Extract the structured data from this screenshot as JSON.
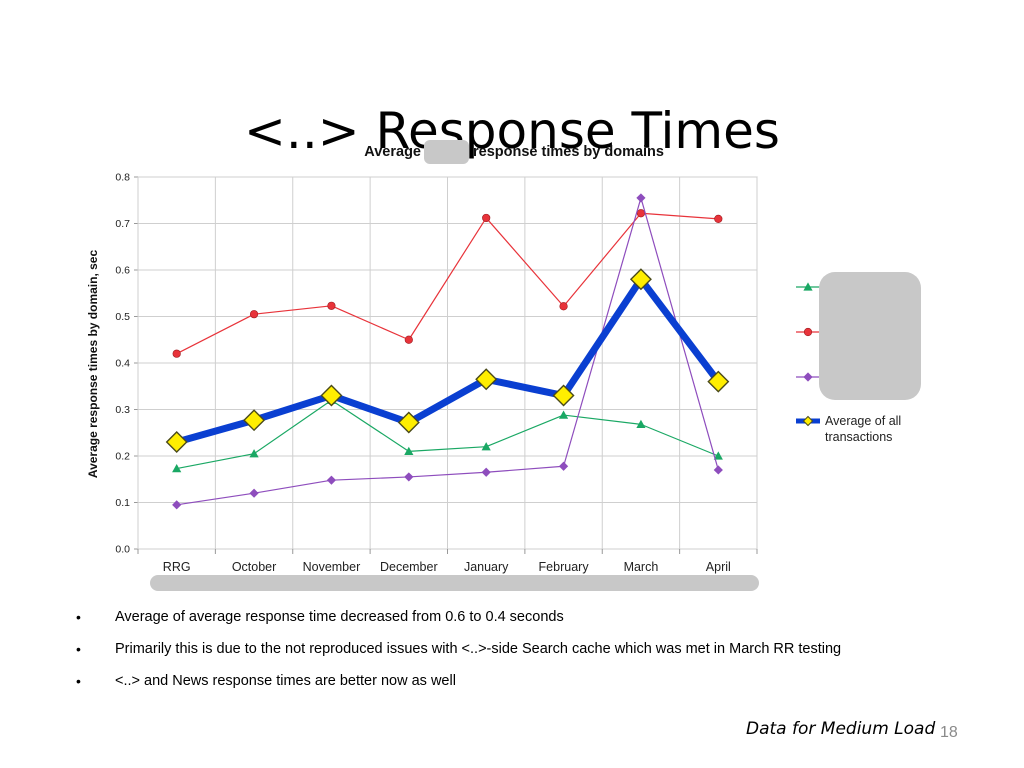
{
  "slide": {
    "title": "<..> Response Times",
    "bullets": [
      "Average of average response time decreased from 0.6 to 0.4 seconds",
      "Primarily this is due to the not reproduced issues with <..>-side Search cache which was met  in March RR testing",
      "<..> and News response times are better now as well"
    ],
    "footer_note": "Data for Medium Load",
    "slide_number": "18"
  },
  "chart_data": {
    "type": "line",
    "title_left": "Average",
    "title_right": "response times by domains",
    "xlabel": "",
    "ylabel": "Average response  times by domain, sec",
    "ylim": [
      0,
      0.8
    ],
    "yticks": [
      "0.0",
      "0.1",
      "0.2",
      "0.3",
      "0.4",
      "0.5",
      "0.6",
      "0.7",
      "0.8"
    ],
    "categories": [
      "RRG",
      "October",
      "November",
      "December",
      "January",
      "February",
      "March",
      "April"
    ],
    "grid": true,
    "legend_position": "right",
    "series": [
      {
        "name": "",
        "color": "#e8333a",
        "marker": "circle",
        "values": [
          0.42,
          0.505,
          0.523,
          0.45,
          0.712,
          0.522,
          0.722,
          0.71
        ]
      },
      {
        "name": "",
        "color": "#1aa864",
        "marker": "triangle",
        "values": [
          0.173,
          0.205,
          0.32,
          0.21,
          0.22,
          0.288,
          0.268,
          0.2
        ]
      },
      {
        "name": "",
        "color": "#8e4dbd",
        "marker": "diamond",
        "values": [
          0.095,
          0.12,
          0.148,
          0.155,
          0.165,
          0.178,
          0.755,
          0.17
        ]
      },
      {
        "name": "Average of all transactions",
        "color": "#0a3fd1",
        "marker": "diamond-large",
        "marker_fill": "#ffee00",
        "values": [
          0.23,
          0.277,
          0.33,
          0.272,
          0.365,
          0.33,
          0.58,
          0.36
        ]
      }
    ]
  }
}
